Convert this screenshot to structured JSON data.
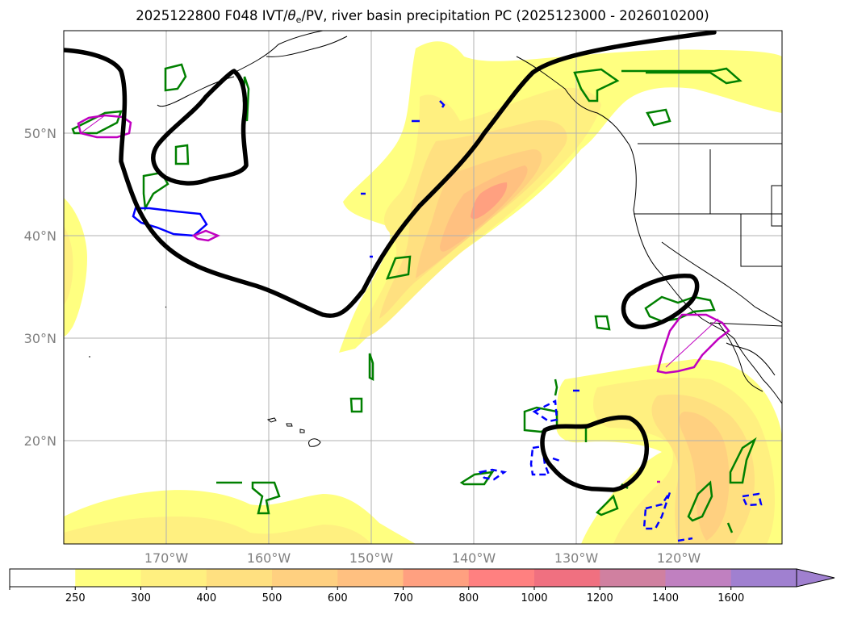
{
  "title": {
    "prefix": "2025122800 F048 IVT/",
    "theta_symbol": "θ",
    "theta_sub": "e",
    "suffix": "/PV, river basin precipitation PC (2025123000 - 2026010200)"
  },
  "map": {
    "latitudes": [
      "50°N",
      "40°N",
      "30°N",
      "20°N"
    ],
    "longitudes": [
      "170°W",
      "160°W",
      "150°W",
      "140°W",
      "130°W",
      "120°W"
    ],
    "lon_range_deg": [
      -180,
      -110
    ],
    "lat_range_deg": [
      10,
      60
    ]
  },
  "colorbar": {
    "ticks": [
      "250",
      "300",
      "400",
      "500",
      "600",
      "700",
      "800",
      "1000",
      "1200",
      "1400",
      "1600"
    ],
    "colors": [
      "#ffffff",
      "#ffff80",
      "#fff080",
      "#ffe080",
      "#ffd080",
      "#ffc080",
      "#ffa080",
      "#ff8080",
      "#f07080",
      "#d080a0",
      "#c080c0",
      "#a080d0"
    ],
    "extend": "max"
  },
  "legend_colors": {
    "ivt_contour": "#000000",
    "precip_pc_green": "#008000",
    "precip_pc_blue": "#0000ff",
    "precip_pc_magenta": "#c000c0"
  }
}
